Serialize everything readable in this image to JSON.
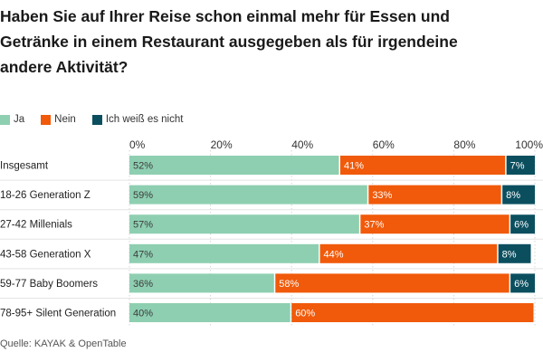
{
  "title_lines": [
    "Haben Sie auf Ihrer Reise schon einmal mehr für Essen und",
    "Getränke in einem Restaurant ausgegeben als für irgendeine",
    "andere Aktivität?"
  ],
  "source": "Quelle: KAYAK & OpenTable",
  "colors": {
    "ja": "#8ecfb1",
    "nein": "#f05a0a",
    "weiss_nicht": "#0b4f5f"
  },
  "chart_data": {
    "type": "bar",
    "orientation": "horizontal",
    "stacked": true,
    "categories": [
      "Insgesamt",
      "18-26 Generation Z",
      "27-42 Millenials",
      "43-58 Generation X",
      "59-77 Baby Boomers",
      "78-95+ Silent Generation"
    ],
    "series": [
      {
        "name": "Ja",
        "values": [
          52,
          59,
          57,
          47,
          36,
          40
        ],
        "labels": [
          "52%",
          "59%",
          "57%",
          "47%",
          "36%",
          "40%"
        ]
      },
      {
        "name": "Nein",
        "values": [
          41,
          33,
          37,
          44,
          58,
          60
        ],
        "labels": [
          "41%",
          "33%",
          "37%",
          "44%",
          "58%",
          "60%"
        ]
      },
      {
        "name": "Ich weiß es nicht",
        "values": [
          7,
          8,
          6,
          8,
          6,
          0
        ],
        "labels": [
          "7%",
          "8%",
          "6%",
          "8%",
          "6%",
          ""
        ]
      }
    ],
    "xticks": [
      "0%",
      "20%",
      "40%",
      "60%",
      "80%",
      "100%"
    ],
    "xlim": [
      0,
      100
    ],
    "grid": true,
    "legend_position": "top-left"
  }
}
